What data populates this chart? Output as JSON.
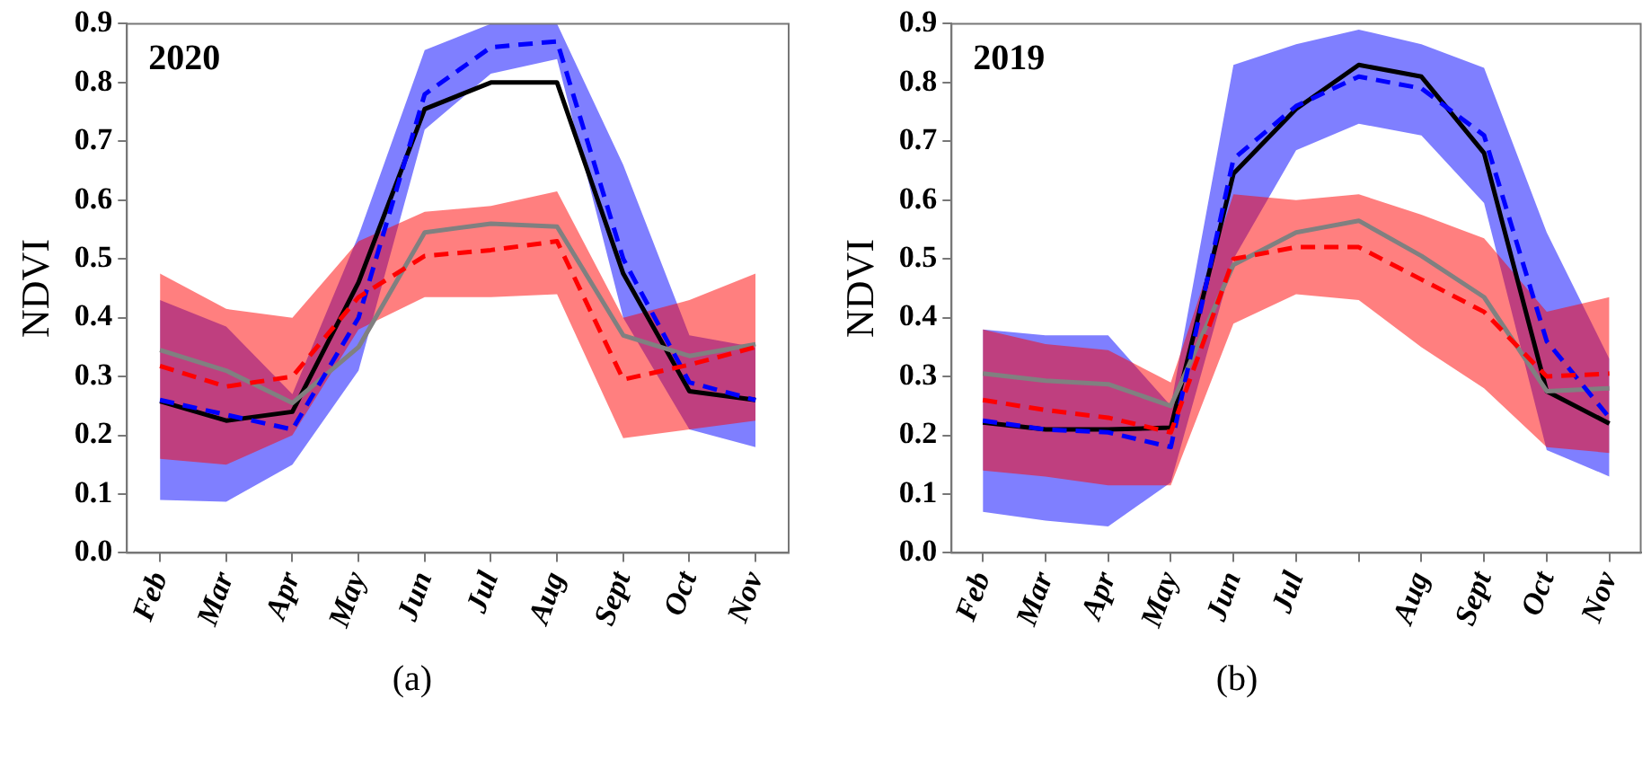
{
  "chart_data": [
    {
      "type": "line",
      "title": "2020",
      "ylabel": "NDVI",
      "annotations": [
        "(a)"
      ],
      "grid": false,
      "legend": false,
      "marker": "none",
      "categories": [
        "Feb",
        "Mar",
        "Apr",
        "May",
        "Jun",
        "Jul",
        "Aug",
        "Sept",
        "Oct",
        "Nov"
      ],
      "ylim": [
        0,
        0.9
      ],
      "yticks": [
        {
          "value": 0,
          "label": "0.0"
        },
        0.1,
        0.2,
        0.3,
        0.4,
        0.5,
        0.6,
        0.7,
        0.8,
        0.9
      ],
      "series": [
        {
          "color": "#ff0000",
          "line_style": "dashed",
          "values": [
            0.318,
            0.283,
            0.3,
            0.435,
            0.505,
            0.515,
            0.53,
            0.295,
            0.32,
            0.35
          ],
          "lower": [
            0.16,
            0.15,
            0.2,
            0.38,
            0.435,
            0.435,
            0.44,
            0.195,
            0.21,
            0.225
          ],
          "upper": [
            0.475,
            0.415,
            0.4,
            0.53,
            0.58,
            0.59,
            0.615,
            0.4,
            0.43,
            0.475
          ]
        },
        {
          "color": "#0000ff",
          "line_style": "dashed",
          "values": [
            0.26,
            0.235,
            0.21,
            0.4,
            0.78,
            0.86,
            0.87,
            0.5,
            0.29,
            0.26
          ],
          "lower": [
            0.09,
            0.087,
            0.15,
            0.31,
            0.72,
            0.815,
            0.84,
            0.4,
            0.21,
            0.18
          ],
          "upper": [
            0.43,
            0.385,
            0.27,
            0.54,
            0.855,
            0.9,
            0.9,
            0.66,
            0.37,
            0.35
          ]
        },
        {
          "color": "#808080",
          "line_style": "solid",
          "values": [
            0.345,
            0.31,
            0.255,
            0.35,
            0.545,
            0.56,
            0.555,
            0.37,
            0.335,
            0.355
          ]
        },
        {
          "color": "#000000",
          "line_style": "solid",
          "values": [
            0.258,
            0.225,
            0.24,
            0.46,
            0.755,
            0.8,
            0.8,
            0.475,
            0.275,
            0.26
          ]
        }
      ]
    },
    {
      "type": "line",
      "title": "2019",
      "ylabel": "NDVI",
      "annotations": [
        "(b)"
      ],
      "grid": false,
      "legend": false,
      "marker": "none",
      "categories": [
        "Feb",
        "Mar",
        "Apr",
        "May",
        "Jun",
        "Jul",
        null,
        "Aug",
        "Sept",
        "Oct",
        "Nov"
      ],
      "ylim": [
        0,
        0.9
      ],
      "yticks": [
        {
          "value": 0,
          "label": "0.0"
        },
        0.1,
        0.2,
        0.3,
        0.4,
        0.5,
        0.6,
        0.7,
        0.8,
        0.9
      ],
      "series": [
        {
          "color": "#ff0000",
          "line_style": "dashed",
          "values": [
            0.26,
            0.243,
            0.23,
            0.205,
            0.5,
            0.52,
            0.52,
            0.465,
            0.41,
            0.3,
            0.305
          ],
          "lower": [
            0.14,
            0.13,
            0.115,
            0.115,
            0.39,
            0.44,
            0.43,
            0.35,
            0.28,
            0.18,
            0.17
          ],
          "upper": [
            0.38,
            0.355,
            0.345,
            0.29,
            0.61,
            0.6,
            0.61,
            0.575,
            0.535,
            0.41,
            0.435
          ]
        },
        {
          "color": "#0000ff",
          "line_style": "dashed",
          "values": [
            0.225,
            0.21,
            0.205,
            0.18,
            0.67,
            0.76,
            0.81,
            0.79,
            0.71,
            0.36,
            0.23
          ],
          "lower": [
            0.07,
            0.055,
            0.045,
            0.12,
            0.5,
            0.685,
            0.73,
            0.71,
            0.595,
            0.175,
            0.13
          ],
          "upper": [
            0.38,
            0.37,
            0.37,
            0.25,
            0.83,
            0.865,
            0.89,
            0.865,
            0.825,
            0.545,
            0.33
          ]
        },
        {
          "color": "#808080",
          "line_style": "solid",
          "values": [
            0.305,
            0.293,
            0.287,
            0.25,
            0.49,
            0.545,
            0.565,
            0.505,
            0.435,
            0.275,
            0.28
          ]
        },
        {
          "color": "#000000",
          "line_style": "solid",
          "values": [
            0.222,
            0.21,
            0.21,
            0.213,
            0.645,
            0.755,
            0.83,
            0.81,
            0.68,
            0.275,
            0.22
          ]
        }
      ]
    }
  ]
}
